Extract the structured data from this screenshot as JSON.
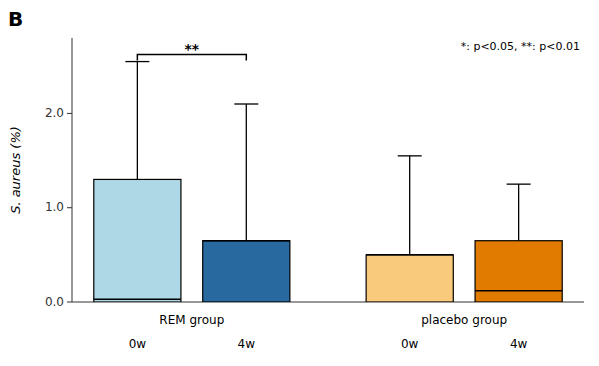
{
  "chart_data": {
    "type": "box",
    "panel_label": "B",
    "y_label": "S. aureus (%)",
    "annotation": "*: p<0.05, **: p<0.01",
    "groups": [
      {
        "name": "REM group",
        "categories": [
          "0w",
          "4w"
        ],
        "colors": [
          "#add8e6",
          "#2869a0"
        ],
        "box_low": [
          0.0,
          0.0
        ],
        "box_high": [
          1.3,
          0.65
        ],
        "median": [
          0.03,
          0.65
        ],
        "whisker_high": [
          2.55,
          2.1
        ]
      },
      {
        "name": "placebo group",
        "categories": [
          "0w",
          "4w"
        ],
        "colors": [
          "#f9c97c",
          "#e07b00"
        ],
        "box_low": [
          0.0,
          0.0
        ],
        "box_high": [
          0.5,
          0.65
        ],
        "median": [
          0.5,
          0.12
        ],
        "whisker_high": [
          1.55,
          1.25
        ]
      }
    ],
    "significance": {
      "text": "**",
      "group": "REM group"
    },
    "ylim": [
      0,
      2.8
    ],
    "yticks": [
      {
        "value": 0.0,
        "label": "0.0"
      },
      {
        "value": 1.0,
        "label": "1.0"
      },
      {
        "value": 2.0,
        "label": "2.0"
      }
    ],
    "grid": false
  }
}
